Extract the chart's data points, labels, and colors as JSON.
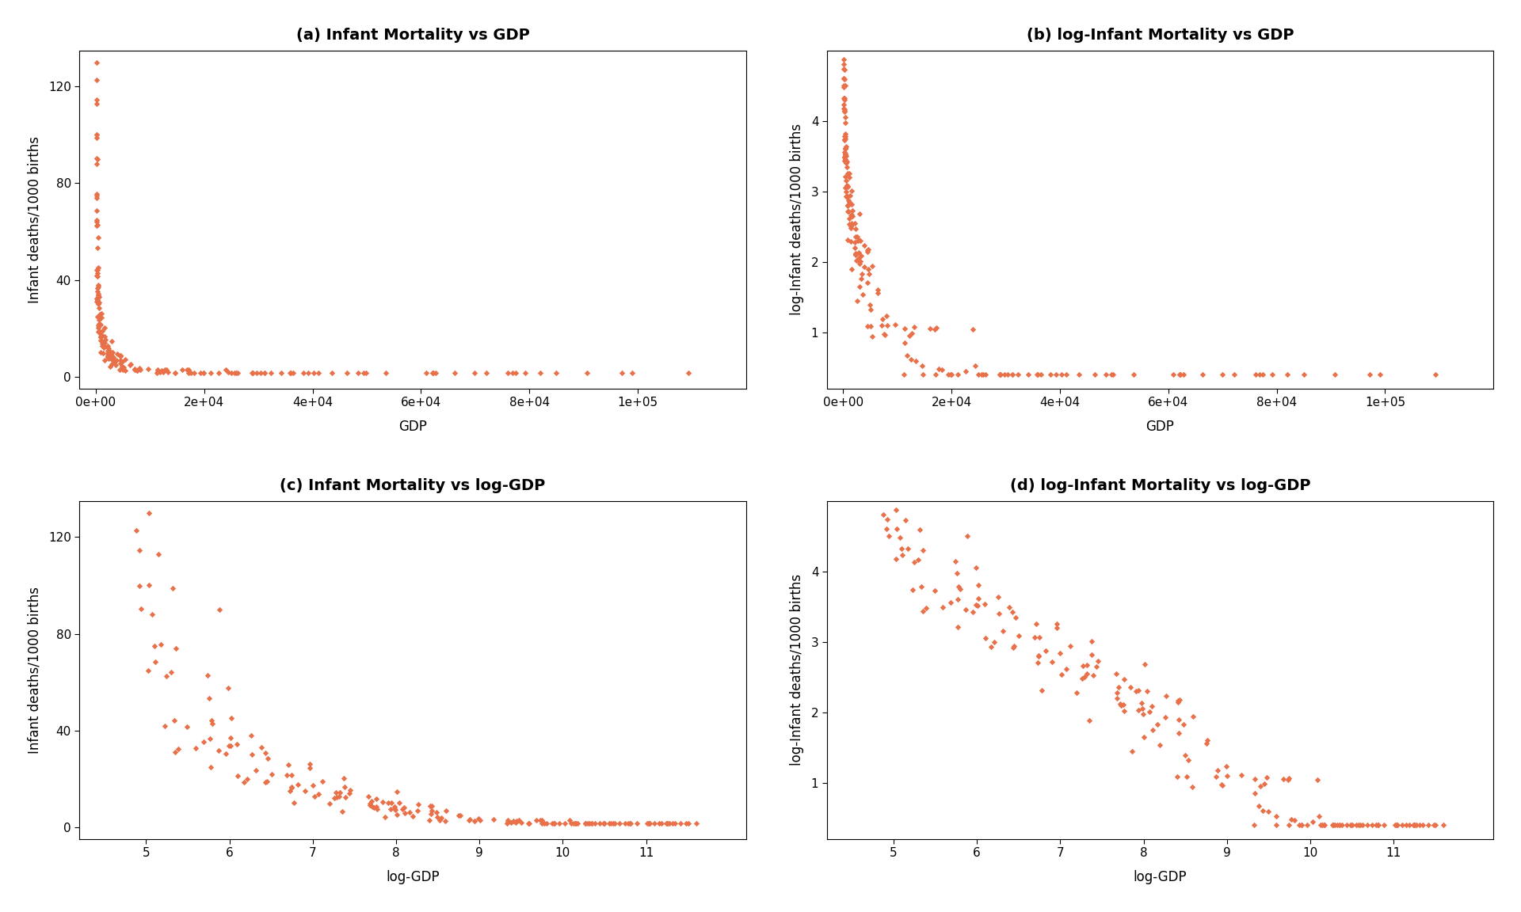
{
  "title_a": "(a) Infant Mortality vs GDP",
  "title_b": "(b) log-Infant Mortality vs GDP",
  "title_c": "(c) Infant Mortality vs log-GDP",
  "title_d": "(d) log-Infant Mortality vs log-GDP",
  "xlabel_ab": "GDP",
  "xlabel_cd": "log-GDP",
  "ylabel_a": "Infant deaths/1000 births",
  "ylabel_b": "log-Infant deaths/1000 births",
  "ylabel_c": "Infant deaths/1000 births",
  "ylabel_d": "log-Infant deaths/1000 births",
  "dot_color": "#E8714A",
  "dot_size": 14,
  "bg_color": "#FFFFFF",
  "title_fontsize": 14,
  "label_fontsize": 12,
  "tick_fontsize": 11
}
